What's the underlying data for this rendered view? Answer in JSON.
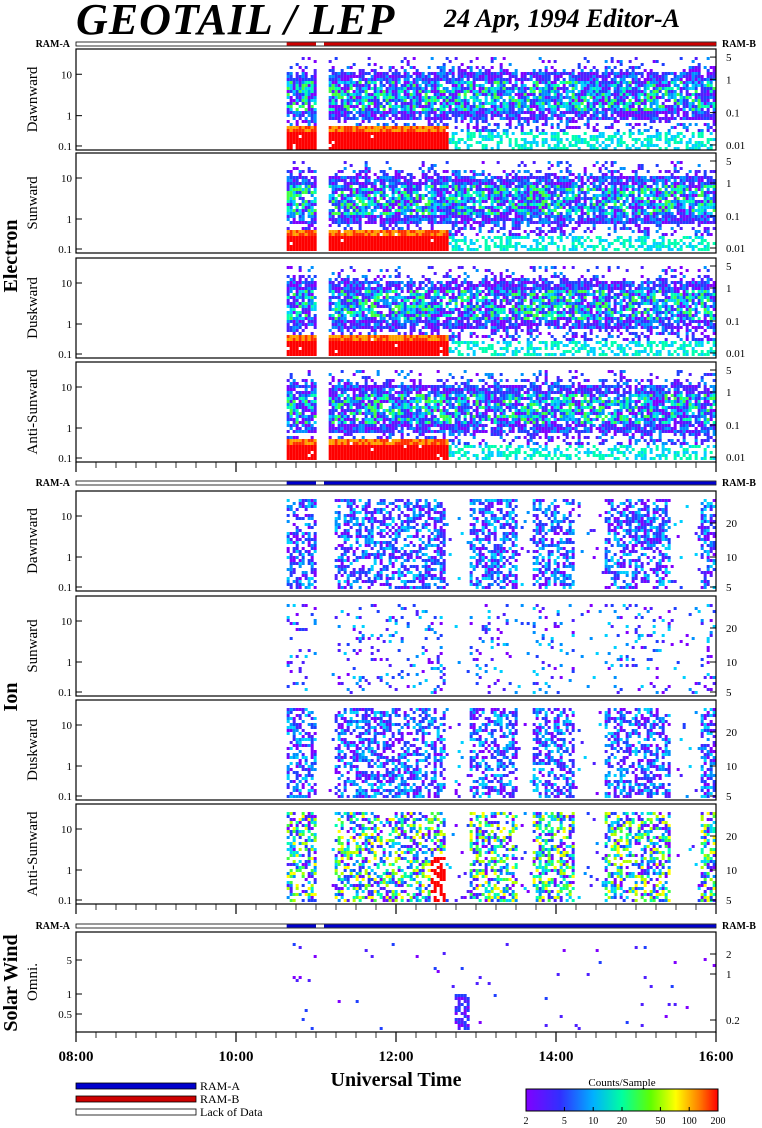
{
  "header": {
    "title": "GEOTAIL / LEP",
    "subtitle": "24 Apr, 1994   Editor-A"
  },
  "bars": {
    "ram_a": "RAM-A",
    "ram_b": "RAM-B"
  },
  "groups": [
    {
      "name": "Electron",
      "panels": [
        {
          "label": "Dawnward",
          "left_ticks": [
            "10",
            "1",
            "0.1"
          ],
          "right_ticks": [
            "5",
            "1",
            "0.1",
            "0.01"
          ]
        },
        {
          "label": "Sunward",
          "left_ticks": [
            "10",
            "1",
            "0.1"
          ],
          "right_ticks": [
            "5",
            "1",
            "0.1",
            "0.01"
          ]
        },
        {
          "label": "Duskward",
          "left_ticks": [
            "10",
            "1",
            "0.1"
          ],
          "right_ticks": [
            "5",
            "1",
            "0.1",
            "0.01"
          ]
        },
        {
          "label": "Anti-Sunward",
          "left_ticks": [
            "10",
            "1",
            "0.1"
          ],
          "right_ticks": [
            "5",
            "1",
            "0.1",
            "0.01"
          ]
        }
      ]
    },
    {
      "name": "Ion",
      "panels": [
        {
          "label": "Dawnward",
          "left_ticks": [
            "10",
            "1",
            "0.1"
          ],
          "right_ticks": [
            "20",
            "10",
            "5"
          ]
        },
        {
          "label": "Sunward",
          "left_ticks": [
            "10",
            "1",
            "0.1"
          ],
          "right_ticks": [
            "20",
            "10",
            "5"
          ]
        },
        {
          "label": "Duskward",
          "left_ticks": [
            "10",
            "1",
            "0.1"
          ],
          "right_ticks": [
            "20",
            "10",
            "5"
          ]
        },
        {
          "label": "Anti-Sunward",
          "left_ticks": [
            "10",
            "1",
            "0.1"
          ],
          "right_ticks": [
            "20",
            "10",
            "5"
          ]
        }
      ]
    },
    {
      "name": "Solar Wind",
      "panels": [
        {
          "label": "Omni.",
          "left_ticks": [
            "5",
            "1",
            "0.5"
          ],
          "right_ticks": [
            "2",
            "1",
            "0.2"
          ]
        }
      ]
    }
  ],
  "xaxis": {
    "label": "Universal Time",
    "ticks": [
      "08:00",
      "10:00",
      "12:00",
      "14:00",
      "16:00"
    ]
  },
  "legend": {
    "items": [
      {
        "label": "RAM-A",
        "color": "#0000cc"
      },
      {
        "label": "RAM-B",
        "color": "#cc0000"
      },
      {
        "label": "Lack of Data",
        "color": "#ffffff"
      }
    ]
  },
  "colorbar": {
    "title": "Counts/Sample",
    "ticks": [
      "2",
      "5",
      "10",
      "20",
      "50",
      "100",
      "200"
    ]
  },
  "chart_data": {
    "type": "heatmap",
    "title": "GEOTAIL / LEP",
    "date": "24 Apr, 1994",
    "xlabel": "Universal Time",
    "xlim": [
      "08:00",
      "16:00"
    ],
    "data_start": "10:38",
    "colorbar": {
      "label": "Counts/Sample",
      "range": [
        2,
        200
      ],
      "scale": "log"
    },
    "panels": [
      "Electron Dawnward",
      "Electron Sunward",
      "Electron Duskward",
      "Electron Anti-Sunward",
      "Ion Dawnward",
      "Ion Sunward",
      "Ion Duskward",
      "Ion Anti-Sunward",
      "Solar Wind Omni."
    ]
  }
}
